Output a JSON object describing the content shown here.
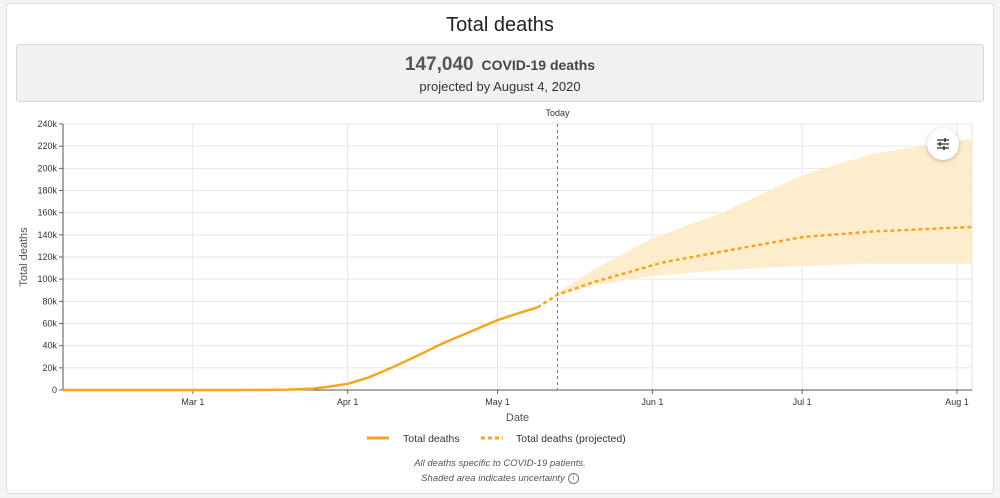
{
  "header": {
    "title": "Total deaths"
  },
  "summary": {
    "number": "147,040",
    "unit": "COVID-19 deaths",
    "subtitle": "projected by August 4, 2020"
  },
  "chart_data": {
    "type": "line",
    "xlabel": "Date",
    "ylabel": "Total deaths",
    "x_ticks": [
      "Mar 1",
      "Apr 1",
      "May 1",
      "Jun 1",
      "Jul 1",
      "Aug 1"
    ],
    "y_ticks": [
      "0",
      "20k",
      "40k",
      "60k",
      "80k",
      "100k",
      "120k",
      "140k",
      "160k",
      "180k",
      "200k",
      "220k",
      "240k"
    ],
    "ylim": [
      0,
      240000
    ],
    "xlim": [
      "2020-02-04",
      "2020-08-04"
    ],
    "today": {
      "date": "2020-05-13",
      "label": "Today"
    },
    "grid": true,
    "legend": [
      "Total deaths",
      "Total deaths (projected)"
    ],
    "series": [
      {
        "name": "Total deaths",
        "style": "solid",
        "color": "#f5a623",
        "points": [
          [
            "2020-02-04",
            0
          ],
          [
            "2020-02-29",
            0
          ],
          [
            "2020-03-10",
            30
          ],
          [
            "2020-03-15",
            100
          ],
          [
            "2020-03-20",
            400
          ],
          [
            "2020-03-25",
            1300
          ],
          [
            "2020-03-28",
            2800
          ],
          [
            "2020-04-01",
            5600
          ],
          [
            "2020-04-05",
            11000
          ],
          [
            "2020-04-10",
            20500
          ],
          [
            "2020-04-15",
            31000
          ],
          [
            "2020-04-20",
            42000
          ],
          [
            "2020-04-25",
            51500
          ],
          [
            "2020-05-01",
            63000
          ],
          [
            "2020-05-05",
            69000
          ],
          [
            "2020-05-09",
            74500
          ]
        ]
      },
      {
        "name": "Total deaths (projected)",
        "style": "dashed",
        "color": "#f5a623",
        "points": [
          [
            "2020-05-09",
            74500
          ],
          [
            "2020-05-13",
            86000
          ],
          [
            "2020-05-20",
            97000
          ],
          [
            "2020-05-27",
            106000
          ],
          [
            "2020-06-03",
            115000
          ],
          [
            "2020-06-15",
            125000
          ],
          [
            "2020-07-01",
            138000
          ],
          [
            "2020-07-15",
            143000
          ],
          [
            "2020-08-04",
            147040
          ]
        ]
      }
    ],
    "uncertainty": {
      "color": "#fdebc8",
      "upper": [
        [
          "2020-05-13",
          88000
        ],
        [
          "2020-05-20",
          108000
        ],
        [
          "2020-06-01",
          137000
        ],
        [
          "2020-06-15",
          160000
        ],
        [
          "2020-07-01",
          194000
        ],
        [
          "2020-07-15",
          213000
        ],
        [
          "2020-08-04",
          227000
        ]
      ],
      "lower": [
        [
          "2020-05-13",
          85000
        ],
        [
          "2020-05-20",
          94000
        ],
        [
          "2020-06-01",
          103000
        ],
        [
          "2020-06-15",
          108000
        ],
        [
          "2020-07-01",
          112000
        ],
        [
          "2020-07-15",
          114000
        ],
        [
          "2020-08-04",
          114000
        ]
      ]
    }
  },
  "notes": {
    "line1": "All deaths specific to COVID-19 patients.",
    "line2": "Shaded area indicates uncertainty"
  },
  "icons": {
    "settings": "sliders-icon",
    "info": "info-icon"
  }
}
